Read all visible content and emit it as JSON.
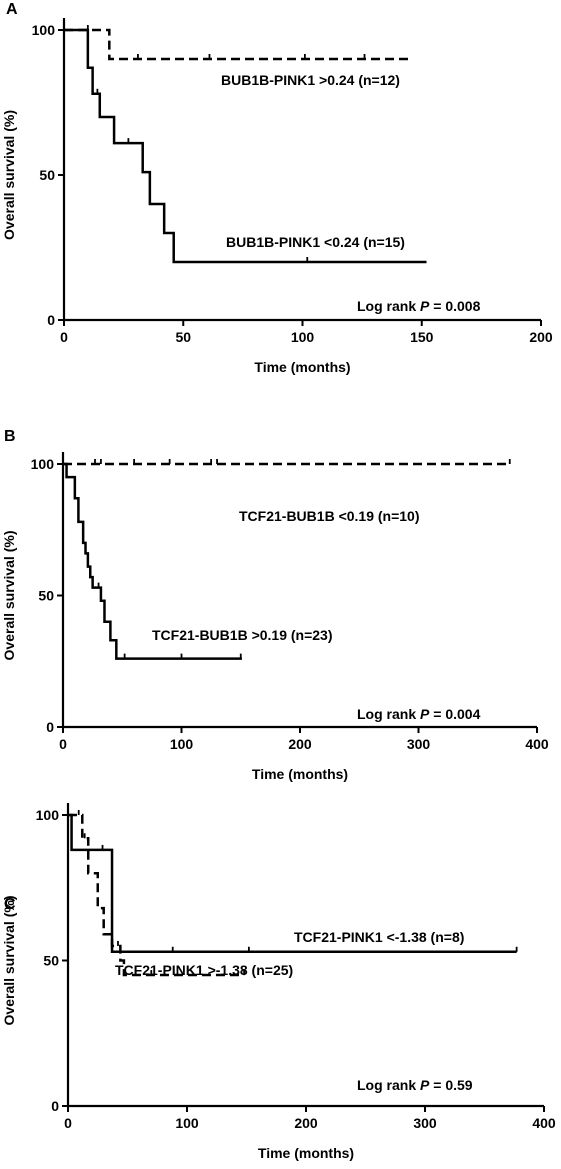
{
  "chart_data": [
    {
      "type": "line",
      "subtype": "kaplan-meier",
      "panel": "A",
      "xlabel": "Time (months)",
      "ylabel": "Overall survival (%)",
      "xlim": [
        0,
        200
      ],
      "ylim": [
        0,
        100
      ],
      "xticks": [
        0,
        50,
        100,
        150,
        200
      ],
      "yticks": [
        0,
        50,
        100
      ],
      "series": [
        {
          "name": "BUB1B-PINK1 >0.24 (n=12)",
          "style": "dashed",
          "steps": [
            [
              0,
              100
            ],
            [
              19,
              90
            ],
            [
              146,
              90
            ]
          ],
          "censored": [
            [
              10,
              100
            ],
            [
              31,
              90
            ],
            [
              61,
              90
            ],
            [
              101,
              90
            ],
            [
              126,
              90
            ]
          ]
        },
        {
          "name": "BUB1B-PINK1 <0.24 (n=15)",
          "style": "solid",
          "steps": [
            [
              0,
              100
            ],
            [
              10,
              87
            ],
            [
              12,
              78
            ],
            [
              15,
              70
            ],
            [
              21,
              61
            ],
            [
              33,
              51
            ],
            [
              36,
              40
            ],
            [
              42,
              30
            ],
            [
              46,
              20
            ],
            [
              152,
              20
            ]
          ],
          "censored": [
            [
              14,
              78
            ],
            [
              27,
              61
            ],
            [
              102,
              20
            ]
          ]
        }
      ],
      "annotation": {
        "prefix": "Log rank ",
        "p": "P",
        "suffix": " = 0.008"
      }
    },
    {
      "type": "line",
      "subtype": "kaplan-meier",
      "panel": "B",
      "xlabel": "Time (months)",
      "ylabel": "Overall survival (%)",
      "xlim": [
        0,
        400
      ],
      "ylim": [
        0,
        100
      ],
      "xticks": [
        0,
        100,
        200,
        300,
        400
      ],
      "yticks": [
        0,
        50,
        100
      ],
      "series": [
        {
          "name": "TCF21-BUB1B <0.19 (n=10)",
          "style": "dashed",
          "steps": [
            [
              0,
              100
            ],
            [
              377,
              100
            ]
          ],
          "censored": [
            [
              27,
              100
            ],
            [
              32,
              100
            ],
            [
              60,
              100
            ],
            [
              90,
              100
            ],
            [
              125,
              100
            ],
            [
              130,
              100
            ],
            [
              377,
              100
            ]
          ]
        },
        {
          "name": "TCF21-BUB1B >0.19 (n=23)",
          "style": "solid",
          "steps": [
            [
              0,
              100
            ],
            [
              3,
              95
            ],
            [
              10,
              87
            ],
            [
              13,
              78
            ],
            [
              17,
              70
            ],
            [
              19,
              66
            ],
            [
              21,
              61
            ],
            [
              23,
              57
            ],
            [
              25,
              53
            ],
            [
              32,
              48
            ],
            [
              35,
              40
            ],
            [
              40,
              33
            ],
            [
              45,
              26
            ],
            [
              151,
              26
            ]
          ],
          "censored": [
            [
              30,
              53
            ],
            [
              52,
              26
            ],
            [
              100,
              26
            ],
            [
              150,
              26
            ]
          ]
        }
      ],
      "annotation": {
        "prefix": "Log rank ",
        "p": "P",
        "suffix": " = 0.004"
      }
    },
    {
      "type": "line",
      "subtype": "kaplan-meier",
      "panel": "C",
      "xlabel": "Time (months)",
      "ylabel": "Overall survival (%)",
      "xlim": [
        0,
        400
      ],
      "ylim": [
        0,
        100
      ],
      "xticks": [
        0,
        100,
        200,
        300,
        400
      ],
      "yticks": [
        0,
        50,
        100
      ],
      "series": [
        {
          "name": "TCF21-PINK1 <-1.38 (n=8)",
          "style": "solid",
          "steps": [
            [
              0,
              100
            ],
            [
              3,
              88
            ],
            [
              34,
              88
            ],
            [
              37,
              53
            ],
            [
              377,
              53
            ]
          ],
          "censored": [
            [
              88,
              53
            ],
            [
              152,
              53
            ],
            [
              377,
              53
            ]
          ]
        },
        {
          "name": "TCF21-PINK1 >-1.38 (n=25)",
          "style": "dashed",
          "steps": [
            [
              0,
              100
            ],
            [
              12,
              92
            ],
            [
              17,
              80
            ],
            [
              25,
              68
            ],
            [
              30,
              59
            ],
            [
              37,
              55
            ],
            [
              44,
              50
            ],
            [
              47,
              45
            ],
            [
              148,
              45
            ]
          ],
          "censored": [
            [
              9,
              100
            ],
            [
              14,
              92
            ],
            [
              29,
              88
            ],
            [
              42,
              55
            ],
            [
              70,
              45
            ],
            [
              148,
              45
            ]
          ]
        }
      ],
      "annotation": {
        "prefix": "Log rank ",
        "p": "P",
        "suffix": " = 0.59"
      }
    }
  ]
}
